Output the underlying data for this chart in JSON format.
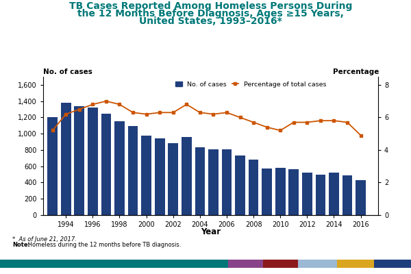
{
  "years": [
    1993,
    1994,
    1995,
    1996,
    1997,
    1998,
    1999,
    2000,
    2001,
    2002,
    2003,
    2004,
    2005,
    2006,
    2007,
    2008,
    2009,
    2010,
    2011,
    2012,
    2013,
    2014,
    2015,
    2016
  ],
  "cases": [
    1207,
    1379,
    1340,
    1320,
    1242,
    1152,
    1095,
    975,
    940,
    880,
    960,
    830,
    805,
    805,
    730,
    680,
    575,
    580,
    560,
    520,
    500,
    520,
    490,
    430
  ],
  "percentages": [
    5.2,
    6.2,
    6.5,
    6.8,
    7.0,
    6.8,
    6.3,
    6.2,
    6.3,
    6.3,
    6.8,
    6.3,
    6.2,
    6.3,
    6.0,
    5.7,
    5.4,
    5.2,
    5.7,
    5.7,
    5.8,
    5.8,
    5.7,
    4.9
  ],
  "bar_color": "#1F3E7C",
  "line_color": "#CC5500",
  "marker_color": "#CC5500",
  "title_line1": "TB Cases Reported Among Homeless Persons During",
  "title_line2": "the 12 Months Before Diagnosis, Ages ≥15 Years,",
  "title_line3": "United States, 1993–2016*",
  "title_color": "#007878",
  "ylabel_left": "No. of cases",
  "ylabel_right": "Percentage",
  "xlabel": "Year",
  "ylim_left": [
    0,
    1700
  ],
  "ylim_right": [
    0,
    8.5
  ],
  "yticks_left": [
    0,
    200,
    400,
    600,
    800,
    1000,
    1200,
    1400,
    1600
  ],
  "yticks_right": [
    0,
    2,
    4,
    6,
    8
  ],
  "footnote1": "*  As of June 21, 2017.",
  "footnote2_bold": "Note:",
  "footnote2_normal": " Homeless during the 12 months before TB diagnosis.",
  "legend_cases": "No. of cases",
  "legend_pct": "Percentage of total cases",
  "footer_colors": [
    "#007878",
    "#884488",
    "#8B1A1A",
    "#9BB8D4",
    "#DAA520",
    "#1F3E7C"
  ],
  "footer_widths": [
    0.555,
    0.085,
    0.085,
    0.095,
    0.09,
    0.09
  ],
  "bg_color": "#FFFFFF"
}
